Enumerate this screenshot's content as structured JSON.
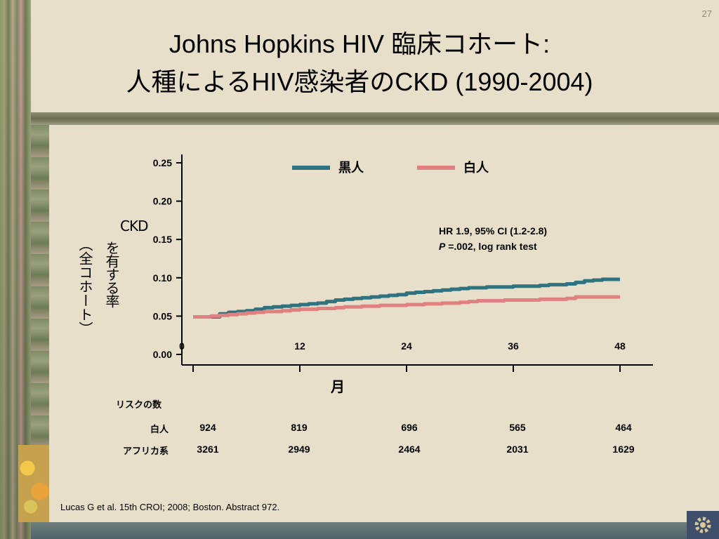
{
  "slide_number": "27",
  "title_line1": "Johns Hopkins HIV 臨床コホート:",
  "title_line2": "人種によるHIV感染者のCKD (1990-2004)",
  "chart_data": {
    "type": "line",
    "xlabel": "月",
    "ylabel_main_prefix": "CKD",
    "ylabel_main_rest": "を有する率",
    "ylabel_sub": "（全コホート）",
    "xlim": [
      0,
      48
    ],
    "ylim": [
      0,
      0.25
    ],
    "x_ticks": [
      "0",
      "12",
      "24",
      "36",
      "48"
    ],
    "y_ticks": [
      "0.00",
      "0.05",
      "0.10",
      "0.15",
      "0.20",
      "0.25"
    ],
    "series": [
      {
        "name": "黒人",
        "color": "#2f7280",
        "x": [
          0,
          2,
          3,
          4,
          5,
          6,
          7,
          8,
          9,
          10,
          11,
          12,
          13,
          14,
          15,
          16,
          17,
          18,
          19,
          20,
          21,
          22,
          23,
          24,
          25,
          26,
          27,
          28,
          29,
          30,
          31,
          32,
          33,
          34,
          35,
          36,
          37,
          38,
          39,
          40,
          41,
          42,
          43,
          44,
          45,
          46,
          47,
          48
        ],
        "values": [
          0.049,
          0.049,
          0.053,
          0.055,
          0.056,
          0.057,
          0.059,
          0.061,
          0.062,
          0.063,
          0.064,
          0.065,
          0.066,
          0.067,
          0.069,
          0.071,
          0.072,
          0.073,
          0.074,
          0.075,
          0.076,
          0.077,
          0.078,
          0.08,
          0.081,
          0.082,
          0.083,
          0.084,
          0.085,
          0.086,
          0.087,
          0.087,
          0.088,
          0.088,
          0.088,
          0.089,
          0.089,
          0.089,
          0.09,
          0.091,
          0.091,
          0.092,
          0.094,
          0.096,
          0.097,
          0.098,
          0.098,
          0.098
        ]
      },
      {
        "name": "白人",
        "color": "#e08080",
        "x": [
          0,
          2,
          3,
          4,
          5,
          6,
          7,
          8,
          9,
          10,
          11,
          12,
          13,
          14,
          15,
          16,
          17,
          18,
          19,
          20,
          21,
          22,
          23,
          24,
          25,
          26,
          27,
          28,
          29,
          30,
          31,
          32,
          33,
          34,
          35,
          36,
          37,
          38,
          39,
          40,
          41,
          42,
          43,
          44,
          45,
          46,
          47,
          48
        ],
        "values": [
          0.049,
          0.05,
          0.051,
          0.052,
          0.053,
          0.054,
          0.055,
          0.056,
          0.056,
          0.057,
          0.058,
          0.059,
          0.059,
          0.06,
          0.06,
          0.061,
          0.062,
          0.062,
          0.063,
          0.063,
          0.064,
          0.064,
          0.064,
          0.065,
          0.065,
          0.066,
          0.066,
          0.067,
          0.067,
          0.068,
          0.069,
          0.07,
          0.07,
          0.07,
          0.071,
          0.071,
          0.071,
          0.071,
          0.072,
          0.072,
          0.072,
          0.073,
          0.075,
          0.075,
          0.075,
          0.075,
          0.075,
          0.075
        ]
      }
    ],
    "legend_placement": "top",
    "annotation_line1": "HR 1.9, 95% CI (1.2-2.8)",
    "annotation_p": "P",
    "annotation_line2_rest": " =.002, log rank test"
  },
  "risk_table": {
    "title": "リスクの数",
    "rows": [
      {
        "label": "白人",
        "values": [
          "924",
          "819",
          "696",
          "565",
          "464"
        ]
      },
      {
        "label": "アフリカ系",
        "values": [
          "3261",
          "2949",
          "2464",
          "2031",
          "1629"
        ]
      }
    ]
  },
  "citation": "Lucas G et al. 15th CROI; 2008; Boston. Abstract 972."
}
